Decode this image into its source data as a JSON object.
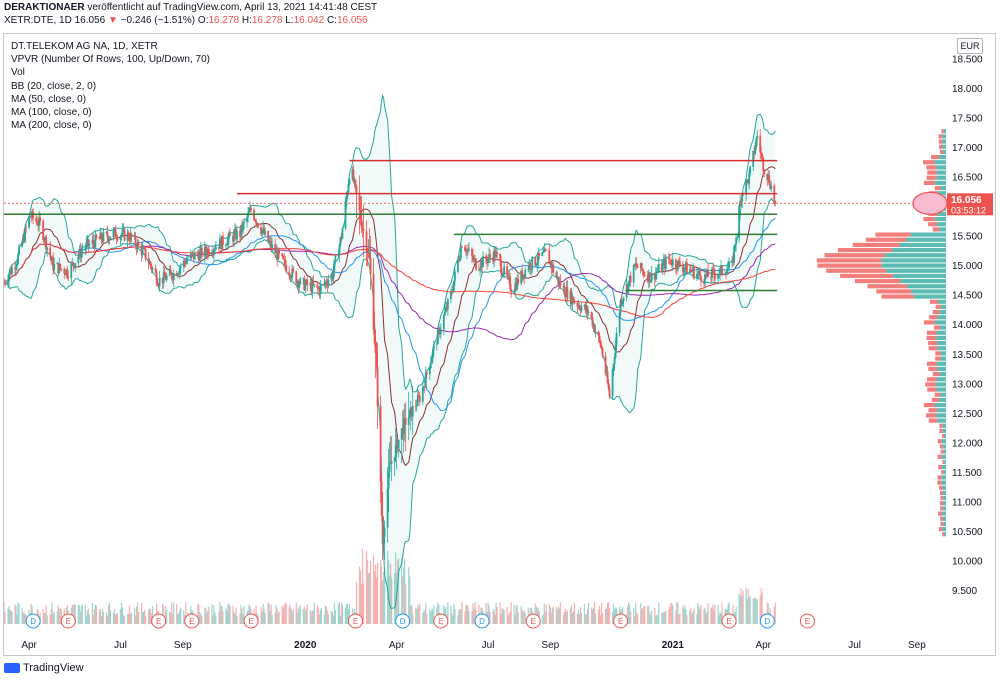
{
  "header": {
    "author": "DERAKTIONAER",
    "published": "veröffentlicht auf TradingView.com, April 13, 2021 14:41:48 CEST"
  },
  "quote": {
    "symbol": "XETR:DTE, 1D",
    "last": "16.056",
    "arrow": "▼",
    "change": "−0.246 (−1.51%)",
    "open_label": "O:",
    "open": "16.278",
    "high_label": "H:",
    "high": "16.278",
    "low_label": "L:",
    "low": "16.042",
    "close_label": "C:",
    "close": "16.056"
  },
  "legend": {
    "title": "DT.TELEKOM AG NA, 1D, XETR",
    "lines": [
      "VPVR (Number Of Rows, 100, Up/Down, 70)",
      "Vol",
      "BB (20, close, 2, 0)",
      "MA (50, close, 0)",
      "MA (100, close, 0)",
      "MA (200, close, 0)"
    ]
  },
  "currency": "EUR",
  "price_tag": {
    "price": "16.056",
    "countdown": "03:53:12"
  },
  "brand": "TradingView",
  "colors": {
    "up": "#26a69a",
    "down": "#ef5350",
    "bb": "#26a69a",
    "ma50": "#2196f3",
    "ma100": "#9c27b0",
    "ma200": "#f44336",
    "resistance": "#d32f2f",
    "support": "#2e7d32"
  },
  "chart_data": {
    "type": "candlestick",
    "y_axis": {
      "ticks": [
        9.5,
        10.0,
        10.5,
        11.0,
        11.5,
        12.0,
        12.5,
        13.0,
        13.5,
        14.0,
        14.5,
        15.0,
        15.5,
        16.0,
        16.5,
        17.0,
        17.5,
        18.0,
        18.5
      ],
      "range": [
        9.25,
        18.65
      ]
    },
    "x_axis": {
      "labels": [
        "Apr",
        "Jul",
        "Sep",
        "2020",
        "Apr",
        "Jul",
        "Sep",
        "2021",
        "Apr",
        "Jul",
        "Sep"
      ],
      "range": [
        "2019-03-07",
        "2021-09-30"
      ]
    },
    "close_path": [
      {
        "d": "2019-03-07",
        "p": 14.72
      },
      {
        "d": "2019-03-20",
        "p": 15.1
      },
      {
        "d": "2019-04-02",
        "p": 15.85
      },
      {
        "d": "2019-04-12",
        "p": 15.7
      },
      {
        "d": "2019-04-25",
        "p": 15.0
      },
      {
        "d": "2019-05-10",
        "p": 14.9
      },
      {
        "d": "2019-05-25",
        "p": 15.3
      },
      {
        "d": "2019-06-10",
        "p": 15.45
      },
      {
        "d": "2019-06-25",
        "p": 15.55
      },
      {
        "d": "2019-07-10",
        "p": 15.5
      },
      {
        "d": "2019-07-25",
        "p": 15.2
      },
      {
        "d": "2019-08-08",
        "p": 14.75
      },
      {
        "d": "2019-08-22",
        "p": 14.85
      },
      {
        "d": "2019-09-05",
        "p": 15.1
      },
      {
        "d": "2019-09-25",
        "p": 15.25
      },
      {
        "d": "2019-10-10",
        "p": 15.4
      },
      {
        "d": "2019-10-28",
        "p": 15.55
      },
      {
        "d": "2019-11-08",
        "p": 15.95
      },
      {
        "d": "2019-11-25",
        "p": 15.4
      },
      {
        "d": "2019-12-10",
        "p": 15.05
      },
      {
        "d": "2019-12-27",
        "p": 14.7
      },
      {
        "d": "2020-01-15",
        "p": 14.6
      },
      {
        "d": "2020-01-28",
        "p": 14.85
      },
      {
        "d": "2020-02-06",
        "p": 15.5
      },
      {
        "d": "2020-02-15",
        "p": 16.7
      },
      {
        "d": "2020-02-24",
        "p": 15.9
      },
      {
        "d": "2020-03-05",
        "p": 15.1
      },
      {
        "d": "2020-03-12",
        "p": 13.2
      },
      {
        "d": "2020-03-18",
        "p": 10.3
      },
      {
        "d": "2020-03-25",
        "p": 11.6
      },
      {
        "d": "2020-04-08",
        "p": 12.3
      },
      {
        "d": "2020-04-25",
        "p": 12.8
      },
      {
        "d": "2020-05-08",
        "p": 13.6
      },
      {
        "d": "2020-05-25",
        "p": 14.5
      },
      {
        "d": "2020-06-05",
        "p": 15.4
      },
      {
        "d": "2020-06-20",
        "p": 15.0
      },
      {
        "d": "2020-07-08",
        "p": 15.2
      },
      {
        "d": "2020-07-25",
        "p": 14.6
      },
      {
        "d": "2020-08-10",
        "p": 15.0
      },
      {
        "d": "2020-08-28",
        "p": 15.2
      },
      {
        "d": "2020-09-10",
        "p": 14.7
      },
      {
        "d": "2020-09-25",
        "p": 14.4
      },
      {
        "d": "2020-10-10",
        "p": 14.2
      },
      {
        "d": "2020-10-22",
        "p": 13.6
      },
      {
        "d": "2020-10-30",
        "p": 12.8
      },
      {
        "d": "2020-11-10",
        "p": 14.4
      },
      {
        "d": "2020-11-25",
        "p": 15.0
      },
      {
        "d": "2020-12-10",
        "p": 14.8
      },
      {
        "d": "2020-12-28",
        "p": 15.1
      },
      {
        "d": "2021-01-15",
        "p": 14.95
      },
      {
        "d": "2021-02-01",
        "p": 14.8
      },
      {
        "d": "2021-02-18",
        "p": 14.9
      },
      {
        "d": "2021-03-01",
        "p": 15.0
      },
      {
        "d": "2021-03-10",
        "p": 16.2
      },
      {
        "d": "2021-03-18",
        "p": 16.5
      },
      {
        "d": "2021-03-26",
        "p": 17.2
      },
      {
        "d": "2021-04-01",
        "p": 16.7
      },
      {
        "d": "2021-04-08",
        "p": 16.4
      },
      {
        "d": "2021-04-13",
        "p": 16.06
      }
    ],
    "horizontal_levels": [
      {
        "price": 16.78,
        "kind": "resistance",
        "from": "2020-02-14",
        "to": "2021-04-15"
      },
      {
        "price": 16.22,
        "kind": "resistance",
        "from": "2019-10-25",
        "to": "2021-04-15"
      },
      {
        "price": 15.87,
        "kind": "support",
        "from": "2019-03-07",
        "to": "2021-04-15"
      },
      {
        "price": 15.53,
        "kind": "support",
        "from": "2020-05-28",
        "to": "2021-04-15"
      },
      {
        "price": 14.58,
        "kind": "support",
        "from": "2020-11-15",
        "to": "2021-04-15"
      }
    ],
    "events": [
      {
        "d": "2019-04-05",
        "t": "D"
      },
      {
        "d": "2019-05-10",
        "t": "E"
      },
      {
        "d": "2019-08-08",
        "t": "E"
      },
      {
        "d": "2019-09-10",
        "t": "E"
      },
      {
        "d": "2019-11-08",
        "t": "E"
      },
      {
        "d": "2020-02-20",
        "t": "E"
      },
      {
        "d": "2020-04-07",
        "t": "D"
      },
      {
        "d": "2020-05-15",
        "t": "E"
      },
      {
        "d": "2020-06-25",
        "t": "D"
      },
      {
        "d": "2020-08-15",
        "t": "E"
      },
      {
        "d": "2020-11-10",
        "t": "E"
      },
      {
        "d": "2021-02-26",
        "t": "E"
      },
      {
        "d": "2021-04-05",
        "t": "D"
      },
      {
        "d": "2021-05-15",
        "t": "E"
      }
    ]
  }
}
